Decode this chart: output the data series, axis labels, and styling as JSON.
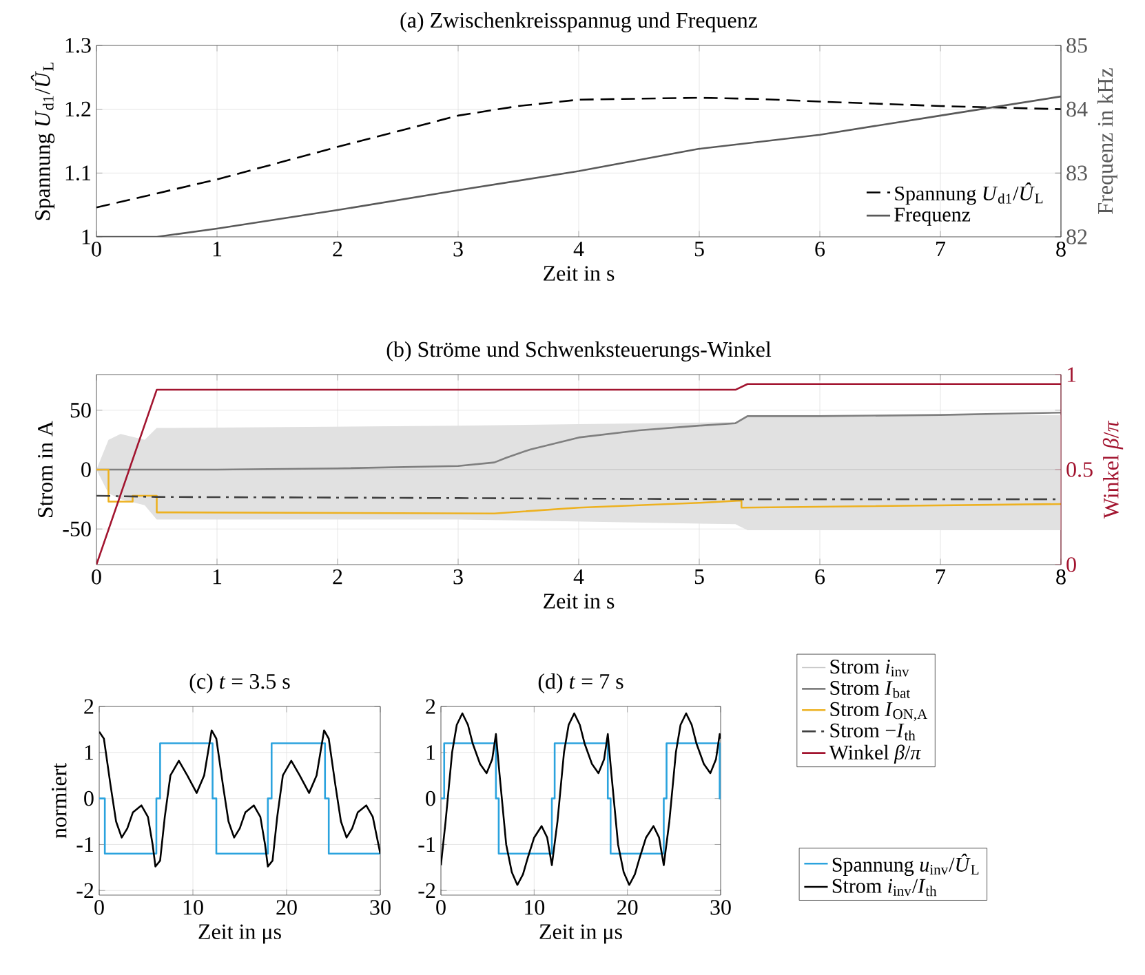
{
  "chart_data": [
    {
      "type": "line",
      "title": "(a) Zwischenkreisspannug und Frequenz",
      "xlabel": "Zeit in s",
      "ylabel": "Spannung *U*$_{d1}$/*Û*$_{L}$",
      "y2label": "Frequenz in kHz",
      "xlim": [
        0,
        8
      ],
      "ylim": [
        1,
        1.3
      ],
      "y2lim": [
        82,
        85
      ],
      "xticks": [
        0,
        1,
        2,
        3,
        4,
        5,
        6,
        7,
        8
      ],
      "yticks": [
        1,
        1.1,
        1.2,
        1.3
      ],
      "y2ticks": [
        82,
        83,
        84,
        85
      ],
      "grid": true,
      "legend": "bottom right",
      "series": [
        {
          "name": "Spannung *U*$_{d1}$/*Û*$_{L}$",
          "color": "#000000",
          "line_style": "dashed",
          "x": [
            0,
            1,
            2,
            3,
            3.5,
            4,
            5,
            5.5,
            6,
            7,
            8
          ],
          "values": [
            1.046,
            1.09,
            1.141,
            1.19,
            1.205,
            1.215,
            1.218,
            1.216,
            1.212,
            1.205,
            1.2
          ]
        },
        {
          "name": "Frequenz",
          "color": "#595959",
          "axis": "y2",
          "x": [
            0,
            0.5,
            1,
            2,
            3,
            4,
            5,
            6,
            7,
            8
          ],
          "values": [
            82.0,
            82.0,
            82.13,
            82.42,
            82.73,
            83.03,
            83.38,
            83.6,
            83.9,
            84.2
          ]
        }
      ]
    },
    {
      "type": "line",
      "title": "(b) Ströme und Schwenksteuerungs-Winkel",
      "xlabel": "Zeit in s",
      "ylabel": "Strom in A",
      "y2label": "Winkel *β*/*π*",
      "xlim": [
        0,
        8
      ],
      "ylim": [
        -80,
        80
      ],
      "y2lim": [
        0,
        1
      ],
      "xticks": [
        0,
        1,
        2,
        3,
        4,
        5,
        6,
        7,
        8
      ],
      "yticks": [
        -50,
        0,
        50
      ],
      "y2ticks": [
        0,
        0.5,
        1
      ],
      "grid": true,
      "legend": "bottom right",
      "series": [
        {
          "name": "Strom *i*$_{inv}$",
          "color": "#c8c8c8",
          "x": [
            0,
            0.1,
            0.2,
            0.4,
            0.5,
            3,
            5.3,
            5.4,
            8
          ],
          "values": [
            0,
            0,
            0,
            0,
            0,
            0,
            0,
            0,
            0
          ],
          "lower": [
            0,
            -20,
            -25,
            -30,
            -42,
            -42,
            -46,
            -51,
            -51
          ],
          "upper": [
            0,
            25,
            30,
            25,
            35,
            37,
            40,
            46,
            46
          ]
        },
        {
          "name": "Strom *I*$_{bat}$",
          "color": "#7f7f7f",
          "x": [
            0,
            1,
            2,
            3,
            3.3,
            3.4,
            3.6,
            4,
            4.5,
            5,
            5.3,
            5.4,
            6,
            7,
            8
          ],
          "values": [
            0,
            0,
            1,
            3,
            6,
            10,
            17,
            27,
            33,
            37,
            39,
            45,
            45,
            46,
            48
          ]
        },
        {
          "name": "Strom *I*$_{ON,A}$",
          "color": "#edb120",
          "x": [
            0,
            0.1,
            0.1,
            0.3,
            0.3,
            0.5,
            0.5,
            0.6,
            3.3,
            4,
            5,
            5.35,
            5.35,
            8
          ],
          "values": [
            0,
            0,
            -27,
            -27,
            -22,
            -22,
            -36,
            -36,
            -37,
            -32,
            -28,
            -26,
            -32,
            -29
          ]
        },
        {
          "name": "Strom −*I*$_{th}$",
          "color": "#404040",
          "line_style": "dashdot",
          "x": [
            0,
            0.5,
            3,
            5.35,
            8
          ],
          "values": [
            -22,
            -23,
            -24,
            -25,
            -25
          ]
        },
        {
          "name": "Winkel *β*/*π*",
          "color": "#a2142f",
          "axis": "y2",
          "x": [
            0,
            0.5,
            5.3,
            5.4,
            8
          ],
          "values": [
            0,
            0.92,
            0.92,
            0.95,
            0.95
          ]
        }
      ]
    },
    {
      "type": "line",
      "title": "(c) *t* = 3.5 s",
      "xlabel": "Zeit in μs",
      "ylabel": "normiert",
      "xlim": [
        0,
        30
      ],
      "ylim": [
        -2.1,
        2
      ],
      "xticks": [
        0,
        10,
        20,
        30
      ],
      "yticks": [
        -2,
        -1,
        0,
        1,
        2
      ],
      "grid": true,
      "series": [
        {
          "color": "#2ba3de",
          "x": [
            0,
            0.6,
            0.6,
            6.1,
            6.1,
            6.5,
            6.5,
            12.1,
            12.1,
            12.5,
            12.5,
            18.0,
            18.0,
            18.4,
            18.4,
            24.1,
            24.1,
            24.5,
            24.5,
            30
          ],
          "values": [
            0,
            0,
            -1.2,
            -1.2,
            0,
            0,
            1.2,
            1.2,
            0,
            0,
            -1.2,
            -1.2,
            0,
            0,
            1.2,
            1.2,
            0,
            0,
            -1.2,
            -1.2
          ]
        },
        {
          "color": "#000000",
          "x": [
            0,
            0.5,
            1.2,
            1.8,
            2.4,
            3.0,
            3.6,
            4.5,
            5.2,
            5.7,
            6.0,
            6.5,
            7.0,
            7.6,
            8.5,
            9.4,
            10.4,
            11.2,
            12.0,
            12.5,
            13.2,
            13.8,
            14.4,
            15.0,
            15.6,
            16.5,
            17.2,
            17.7,
            18.0,
            18.5,
            19.0,
            19.6,
            20.5,
            21.4,
            22.4,
            23.2,
            24.0,
            24.5,
            25.2,
            25.8,
            26.4,
            27.0,
            27.6,
            28.5,
            29.2,
            29.7,
            30
          ],
          "values": [
            1.45,
            1.3,
            0.3,
            -0.5,
            -0.85,
            -0.65,
            -0.3,
            -0.15,
            -0.4,
            -1.0,
            -1.48,
            -1.35,
            -0.4,
            0.5,
            0.82,
            0.5,
            0.12,
            0.5,
            1.48,
            1.3,
            0.3,
            -0.5,
            -0.85,
            -0.65,
            -0.3,
            -0.15,
            -0.4,
            -1.0,
            -1.48,
            -1.35,
            -0.4,
            0.5,
            0.82,
            0.5,
            0.12,
            0.5,
            1.48,
            1.3,
            0.3,
            -0.5,
            -0.85,
            -0.65,
            -0.3,
            -0.15,
            -0.4,
            -0.9,
            -1.2
          ]
        }
      ]
    },
    {
      "type": "line",
      "title": "(d) *t* = 7 s",
      "xlabel": "Zeit in μs",
      "xlim": [
        0,
        30
      ],
      "ylim": [
        -2.1,
        2
      ],
      "xticks": [
        0,
        10,
        20,
        30
      ],
      "yticks": [
        -2,
        -1,
        0,
        1,
        2
      ],
      "grid": true,
      "legend": "right",
      "series": [
        {
          "name": "Spannung *u*$_{inv}$/*Û*$_{L}$",
          "color": "#2ba3de",
          "x": [
            0,
            0.35,
            0.35,
            5.9,
            5.9,
            6.2,
            6.2,
            11.9,
            11.9,
            12.2,
            12.2,
            17.9,
            17.9,
            18.2,
            18.2,
            23.9,
            23.9,
            24.2,
            24.2,
            29.9,
            29.9,
            30
          ],
          "values": [
            0,
            0,
            1.2,
            1.2,
            0,
            0,
            -1.2,
            -1.2,
            0,
            0,
            1.2,
            1.2,
            0,
            0,
            -1.2,
            -1.2,
            0,
            0,
            1.2,
            1.2,
            0,
            0
          ]
        },
        {
          "name": "Strom *i*$_{inv}$/*I*$_{th}$",
          "color": "#000000",
          "x": [
            0,
            0.5,
            1.2,
            1.7,
            2.3,
            2.9,
            3.4,
            4.2,
            4.9,
            5.5,
            5.9,
            6.3,
            7.0,
            7.6,
            8.2,
            8.8,
            9.3,
            10.0,
            10.8,
            11.4,
            11.9,
            12.5,
            13.2,
            13.7,
            14.3,
            14.9,
            15.4,
            16.2,
            16.9,
            17.5,
            17.9,
            18.3,
            19.0,
            19.6,
            20.2,
            20.8,
            21.3,
            22.0,
            22.8,
            23.4,
            23.9,
            24.5,
            25.2,
            25.7,
            26.3,
            26.9,
            27.4,
            28.2,
            28.9,
            29.5,
            29.9,
            30
          ],
          "values": [
            -1.45,
            -0.5,
            1.0,
            1.6,
            1.85,
            1.6,
            1.2,
            0.75,
            0.55,
            0.85,
            1.4,
            0.5,
            -1.0,
            -1.6,
            -1.88,
            -1.65,
            -1.3,
            -0.85,
            -0.6,
            -0.85,
            -1.45,
            -0.5,
            1.0,
            1.6,
            1.85,
            1.6,
            1.2,
            0.75,
            0.55,
            0.85,
            1.4,
            0.5,
            -1.0,
            -1.6,
            -1.88,
            -1.65,
            -1.3,
            -0.85,
            -0.6,
            -0.85,
            -1.45,
            -0.5,
            1.0,
            1.6,
            1.85,
            1.6,
            1.2,
            0.75,
            0.55,
            0.85,
            1.4,
            1.3
          ]
        }
      ]
    }
  ]
}
